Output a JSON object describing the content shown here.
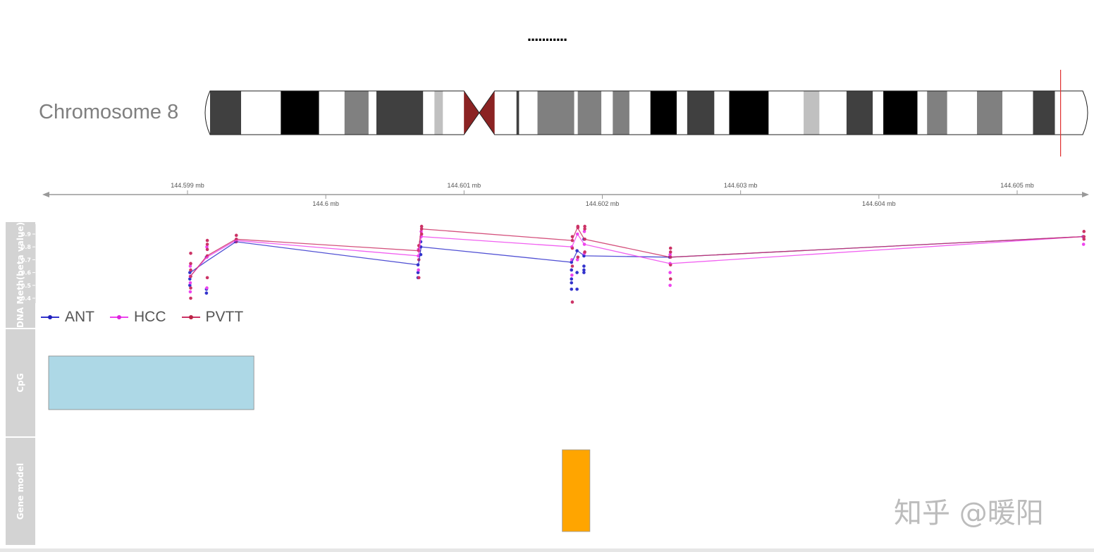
{
  "title": "...........",
  "ideogram": {
    "label": "Chromosome 8",
    "centromere_color": "#8b2323",
    "marker_color": "#e03030",
    "bands": [
      {
        "start": 0.0,
        "end": 0.0355,
        "shade": "#404040"
      },
      {
        "start": 0.0355,
        "end": 0.0808,
        "shade": "#ffffff"
      },
      {
        "start": 0.0808,
        "end": 0.1245,
        "shade": "#000000"
      },
      {
        "start": 0.1245,
        "end": 0.1536,
        "shade": "#ffffff"
      },
      {
        "start": 0.1536,
        "end": 0.1811,
        "shade": "#808080"
      },
      {
        "start": 0.1811,
        "end": 0.19,
        "shade": "#ffffff"
      },
      {
        "start": 0.19,
        "end": 0.2434,
        "shade": "#404040"
      },
      {
        "start": 0.2434,
        "end": 0.2563,
        "shade": "#ffffff"
      },
      {
        "start": 0.2563,
        "end": 0.266,
        "shade": "#c0c0c0"
      },
      {
        "start": 0.266,
        "end": 0.29,
        "shade": "#ffffff"
      },
      {
        "start": 0.325,
        "end": 0.35,
        "shade": "#ffffff"
      },
      {
        "start": 0.35,
        "end": 0.353,
        "shade": "#404040"
      },
      {
        "start": 0.353,
        "end": 0.374,
        "shade": "#ffffff"
      },
      {
        "start": 0.374,
        "end": 0.416,
        "shade": "#808080"
      },
      {
        "start": 0.416,
        "end": 0.42,
        "shade": "#ffffff"
      },
      {
        "start": 0.42,
        "end": 0.447,
        "shade": "#808080"
      },
      {
        "start": 0.447,
        "end": 0.46,
        "shade": "#ffffff"
      },
      {
        "start": 0.46,
        "end": 0.479,
        "shade": "#808080"
      },
      {
        "start": 0.479,
        "end": 0.503,
        "shade": "#ffffff"
      },
      {
        "start": 0.503,
        "end": 0.533,
        "shade": "#000000"
      },
      {
        "start": 0.533,
        "end": 0.545,
        "shade": "#ffffff"
      },
      {
        "start": 0.545,
        "end": 0.576,
        "shade": "#404040"
      },
      {
        "start": 0.576,
        "end": 0.593,
        "shade": "#ffffff"
      },
      {
        "start": 0.593,
        "end": 0.638,
        "shade": "#000000"
      },
      {
        "start": 0.638,
        "end": 0.678,
        "shade": "#ffffff"
      },
      {
        "start": 0.678,
        "end": 0.696,
        "shade": "#c0c0c0"
      },
      {
        "start": 0.696,
        "end": 0.727,
        "shade": "#ffffff"
      },
      {
        "start": 0.727,
        "end": 0.757,
        "shade": "#404040"
      },
      {
        "start": 0.757,
        "end": 0.769,
        "shade": "#ffffff"
      },
      {
        "start": 0.769,
        "end": 0.808,
        "shade": "#000000"
      },
      {
        "start": 0.808,
        "end": 0.819,
        "shade": "#ffffff"
      },
      {
        "start": 0.819,
        "end": 0.842,
        "shade": "#808080"
      },
      {
        "start": 0.842,
        "end": 0.876,
        "shade": "#ffffff"
      },
      {
        "start": 0.876,
        "end": 0.905,
        "shade": "#808080"
      },
      {
        "start": 0.905,
        "end": 0.94,
        "shade": "#ffffff"
      },
      {
        "start": 0.94,
        "end": 0.965,
        "shade": "#404040"
      },
      {
        "start": 0.965,
        "end": 1.0,
        "shade": "#ffffff"
      }
    ],
    "centromere": {
      "start": 0.29,
      "end": 0.325
    },
    "marker_position": 0.9715
  },
  "axis": {
    "upper_ticks": [
      {
        "pos": 144.599,
        "label": "144.599 mb"
      },
      {
        "pos": 144.601,
        "label": "144.601 mb"
      },
      {
        "pos": 144.603,
        "label": "144.603 mb"
      },
      {
        "pos": 144.605,
        "label": "144.605 mb"
      }
    ],
    "lower_ticks": [
      {
        "pos": 144.6,
        "label": "144.6 mb"
      },
      {
        "pos": 144.602,
        "label": "144.602 mb"
      },
      {
        "pos": 144.604,
        "label": "144.604 mb"
      }
    ],
    "xlim": [
      144.598,
      144.6057
    ]
  },
  "tracks": {
    "methylation_label": "DNA Meth(beta value)",
    "cpg_label": "CpG",
    "gene_label": "Gene model"
  },
  "chart_data": {
    "type": "line",
    "ylabel": "DNA Meth(beta value)",
    "ylim": [
      0.34,
      0.98
    ],
    "y_ticks": [
      "0.4",
      "0.5",
      "0.6",
      "0.7",
      "0.8",
      "0.9"
    ],
    "xlim": [
      144.598,
      144.6057
    ],
    "legend": {
      "placement": "bottom-left"
    },
    "series": [
      {
        "name": "ANT",
        "color": "#3333cc",
        "line": [
          [
            144.59902,
            0.6
          ],
          [
            144.59914,
            0.69
          ],
          [
            144.59935,
            0.84
          ],
          [
            144.60067,
            0.66
          ],
          [
            144.60069,
            0.8
          ],
          [
            144.60178,
            0.68
          ],
          [
            144.60182,
            0.77
          ],
          [
            144.60187,
            0.73
          ],
          [
            144.60249,
            0.72
          ],
          [
            144.60548,
            0.88
          ]
        ],
        "points": [
          [
            144.59902,
            0.5
          ],
          [
            144.59902,
            0.55
          ],
          [
            144.59902,
            0.6
          ],
          [
            144.59914,
            0.44
          ],
          [
            144.59914,
            0.47
          ],
          [
            144.59914,
            0.72
          ],
          [
            144.59935,
            0.84
          ],
          [
            144.60067,
            0.56
          ],
          [
            144.60067,
            0.6
          ],
          [
            144.60067,
            0.66
          ],
          [
            144.60069,
            0.74
          ],
          [
            144.60069,
            0.8
          ],
          [
            144.60069,
            0.84
          ],
          [
            144.60178,
            0.47
          ],
          [
            144.60178,
            0.52
          ],
          [
            144.60178,
            0.55
          ],
          [
            144.60178,
            0.62
          ],
          [
            144.60178,
            0.68
          ],
          [
            144.60182,
            0.47
          ],
          [
            144.60182,
            0.6
          ],
          [
            144.60182,
            0.77
          ],
          [
            144.60187,
            0.6
          ],
          [
            144.60187,
            0.62
          ],
          [
            144.60187,
            0.65
          ],
          [
            144.60187,
            0.73
          ],
          [
            144.60187,
            0.86
          ],
          [
            144.60249,
            0.72
          ],
          [
            144.60548,
            0.88
          ]
        ]
      },
      {
        "name": "HCC",
        "color": "#ee44ee",
        "line": [
          [
            144.59902,
            0.57
          ],
          [
            144.59914,
            0.72
          ],
          [
            144.59935,
            0.85
          ],
          [
            144.60067,
            0.73
          ],
          [
            144.60069,
            0.88
          ],
          [
            144.60178,
            0.8
          ],
          [
            144.60182,
            0.9
          ],
          [
            144.60187,
            0.82
          ],
          [
            144.60249,
            0.67
          ],
          [
            144.60548,
            0.88
          ]
        ],
        "points": [
          [
            144.59902,
            0.45
          ],
          [
            144.59902,
            0.52
          ],
          [
            144.59902,
            0.57
          ],
          [
            144.59902,
            0.65
          ],
          [
            144.59914,
            0.48
          ],
          [
            144.59914,
            0.72
          ],
          [
            144.59914,
            0.8
          ],
          [
            144.59935,
            0.85
          ],
          [
            144.60067,
            0.62
          ],
          [
            144.60067,
            0.73
          ],
          [
            144.60067,
            0.78
          ],
          [
            144.60069,
            0.88
          ],
          [
            144.60069,
            0.92
          ],
          [
            144.60178,
            0.58
          ],
          [
            144.60178,
            0.7
          ],
          [
            144.60178,
            0.8
          ],
          [
            144.60182,
            0.7
          ],
          [
            144.60182,
            0.9
          ],
          [
            144.60187,
            0.75
          ],
          [
            144.60187,
            0.82
          ],
          [
            144.60187,
            0.92
          ],
          [
            144.60249,
            0.5
          ],
          [
            144.60249,
            0.6
          ],
          [
            144.60249,
            0.67
          ],
          [
            144.60249,
            0.74
          ],
          [
            144.60548,
            0.82
          ],
          [
            144.60548,
            0.88
          ]
        ]
      },
      {
        "name": "PVTT",
        "color": "#cc3366",
        "line": [
          [
            144.59902,
            0.57
          ],
          [
            144.59914,
            0.73
          ],
          [
            144.59935,
            0.86
          ],
          [
            144.60067,
            0.77
          ],
          [
            144.60069,
            0.94
          ],
          [
            144.60178,
            0.85
          ],
          [
            144.60182,
            0.95
          ],
          [
            144.60187,
            0.86
          ],
          [
            144.60249,
            0.72
          ],
          [
            144.60548,
            0.88
          ]
        ],
        "points": [
          [
            144.59902,
            0.4
          ],
          [
            144.59902,
            0.48
          ],
          [
            144.59902,
            0.57
          ],
          [
            144.59902,
            0.62
          ],
          [
            144.59902,
            0.67
          ],
          [
            144.59902,
            0.75
          ],
          [
            144.59914,
            0.56
          ],
          [
            144.59914,
            0.73
          ],
          [
            144.59914,
            0.78
          ],
          [
            144.59914,
            0.82
          ],
          [
            144.59914,
            0.85
          ],
          [
            144.59935,
            0.84
          ],
          [
            144.59935,
            0.86
          ],
          [
            144.59935,
            0.89
          ],
          [
            144.60067,
            0.56
          ],
          [
            144.60067,
            0.7
          ],
          [
            144.60067,
            0.77
          ],
          [
            144.60067,
            0.81
          ],
          [
            144.60069,
            0.9
          ],
          [
            144.60069,
            0.94
          ],
          [
            144.60069,
            0.96
          ],
          [
            144.60178,
            0.37
          ],
          [
            144.60178,
            0.65
          ],
          [
            144.60178,
            0.79
          ],
          [
            144.60178,
            0.85
          ],
          [
            144.60178,
            0.88
          ],
          [
            144.60182,
            0.72
          ],
          [
            144.60182,
            0.95
          ],
          [
            144.60182,
            0.96
          ],
          [
            144.60187,
            0.76
          ],
          [
            144.60187,
            0.86
          ],
          [
            144.60187,
            0.94
          ],
          [
            144.60187,
            0.96
          ],
          [
            144.60249,
            0.55
          ],
          [
            144.60249,
            0.66
          ],
          [
            144.60249,
            0.72
          ],
          [
            144.60249,
            0.76
          ],
          [
            144.60249,
            0.79
          ],
          [
            144.60548,
            0.86
          ],
          [
            144.60548,
            0.88
          ],
          [
            144.60548,
            0.92
          ]
        ]
      }
    ]
  },
  "cpg_island": {
    "start": 144.59802,
    "end": 144.59948,
    "color": "#add8e6"
  },
  "gene_model": {
    "start": 144.60171,
    "end": 144.60191,
    "color": "#ffa500"
  },
  "watermark": "知乎 @暖阳"
}
